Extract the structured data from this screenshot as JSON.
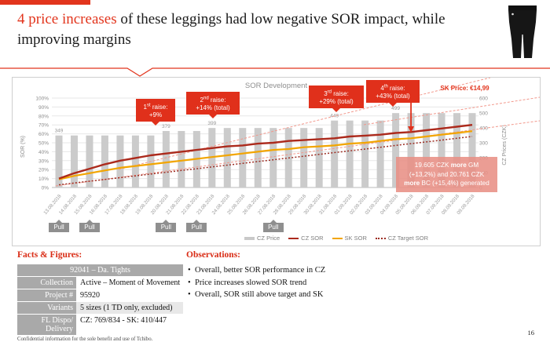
{
  "slide": {
    "title_highlight": "4 price increases",
    "title_rest": " of these leggings had low negative SOR impact, while improving margins",
    "page_number": "16",
    "confidential_note": "Confidential information for the sole benefit and use of  Tchibo.",
    "accent_color": "#e2351d"
  },
  "chart": {
    "title": "SOR Development",
    "sk_price_label": "SK Price: €14,99",
    "pull_label": "Pull",
    "callouts": [
      {
        "title": "1st raise:",
        "value": "+9%"
      },
      {
        "title": "2nd raise:",
        "value": "+14% (total)"
      },
      {
        "title": "3rd raise:",
        "value": "+29% (total)"
      },
      {
        "title": "4th raise:",
        "value": "+43% (total)"
      }
    ],
    "note_lines": [
      [
        {
          "t": "19.605 CZK "
        },
        {
          "t": "more",
          "b": true
        },
        {
          "t": " GM"
        }
      ],
      [
        {
          "t": "(+13,2%) and 20.761 CZK"
        }
      ],
      [
        {
          "t": "more",
          "b": true
        },
        {
          "t": " BC (+15,4%) generated"
        }
      ]
    ],
    "legend_labels": [
      "CZ Price",
      "CZ SOR",
      "SK SOR",
      "CZ Target SOR"
    ]
  },
  "chart_data": {
    "type": "bar+line",
    "title": "SOR Development",
    "ylabel_left": "SOR (%)",
    "ylim_left": [
      0,
      100
    ],
    "yticks_left": [
      "0%",
      "10%",
      "20%",
      "30%",
      "40%",
      "50%",
      "60%",
      "70%",
      "80%",
      "90%",
      "100%"
    ],
    "ylabel_right": "CZ Prices (CZK)",
    "ylim_right": [
      0,
      600
    ],
    "yticks_right": [
      "0",
      "100",
      "200",
      "300",
      "400",
      "500",
      "600"
    ],
    "grid": true,
    "legend_position": "bottom",
    "categories": [
      "13.08.2018",
      "14.08.2018",
      "15.08.2018",
      "16.08.2018",
      "17.08.2018",
      "18.08.2018",
      "19.08.2018",
      "20.08.2018",
      "21.08.2018",
      "22.08.2018",
      "23.08.2018",
      "24.08.2018",
      "25.08.2018",
      "26.08.2018",
      "27.08.2018",
      "28.08.2018",
      "29.08.2018",
      "30.08.2018",
      "31.08.2018",
      "01.09.2018",
      "02.09.2018",
      "03.09.2018",
      "04.09.2018",
      "05.09.2018",
      "06.09.2018",
      "07.09.2018",
      "08.09.2018",
      "09.09.2018"
    ],
    "bar_series": {
      "name": "CZ Price",
      "axis": "right",
      "color": "#cbcbcb",
      "values": [
        349,
        349,
        349,
        349,
        349,
        349,
        349,
        379,
        379,
        379,
        399,
        399,
        399,
        399,
        399,
        399,
        399,
        399,
        449,
        449,
        449,
        449,
        499,
        499,
        499,
        499,
        499,
        499
      ]
    },
    "price_label_indices": [
      0,
      7,
      10,
      18,
      22
    ],
    "line_series": [
      {
        "name": "CZ SOR",
        "color": "#ac2a1c",
        "style": "solid",
        "width": 2.4,
        "values": [
          10,
          16,
          21,
          26,
          30,
          33,
          36,
          38,
          40,
          42,
          44,
          46,
          47,
          49,
          50,
          52,
          53,
          54,
          55,
          57,
          58,
          59,
          61,
          62,
          64,
          66,
          68,
          70
        ]
      },
      {
        "name": "SK SOR",
        "color": "#f2a500",
        "style": "solid",
        "width": 2.2,
        "values": [
          9,
          13,
          16,
          19,
          22,
          24,
          26,
          28,
          30,
          32,
          34,
          36,
          38,
          40,
          42,
          43,
          45,
          46,
          47,
          49,
          50,
          52,
          54,
          55,
          57,
          59,
          61,
          63
        ]
      },
      {
        "name": "CZ Target SOR",
        "color": "#9c2d23",
        "style": "dotted",
        "width": 1.5,
        "values": [
          3,
          5,
          7,
          9,
          11,
          13,
          15,
          17,
          19,
          21,
          23,
          25,
          27,
          29,
          31,
          33,
          35,
          37,
          39,
          41,
          43,
          45,
          47,
          49,
          51,
          53,
          55,
          57
        ]
      }
    ],
    "pull_indices": [
      0,
      2,
      7,
      9,
      14
    ],
    "annotations": {
      "raise_arrow_bar_index": 23,
      "projection_line_color": "#f2988c"
    }
  },
  "facts": {
    "heading": "Facts & Figures:",
    "header": "92041 – Da. Tights",
    "rows": [
      {
        "label": "Collection",
        "value": "Active – Moment of Movement"
      },
      {
        "label": "Project #",
        "value": "95920"
      },
      {
        "label": "Variants",
        "value": "5 sizes (1 TD only, excluded)"
      },
      {
        "label": "FL Dispo/ Delivery",
        "value": "CZ: 769/834 - SK: 410/447"
      }
    ]
  },
  "observations": {
    "heading": "Observations:",
    "bullets": [
      "Overall, better SOR performance in CZ",
      "Price increases slowed SOR trend",
      "Overall, SOR still above target and SK"
    ]
  }
}
